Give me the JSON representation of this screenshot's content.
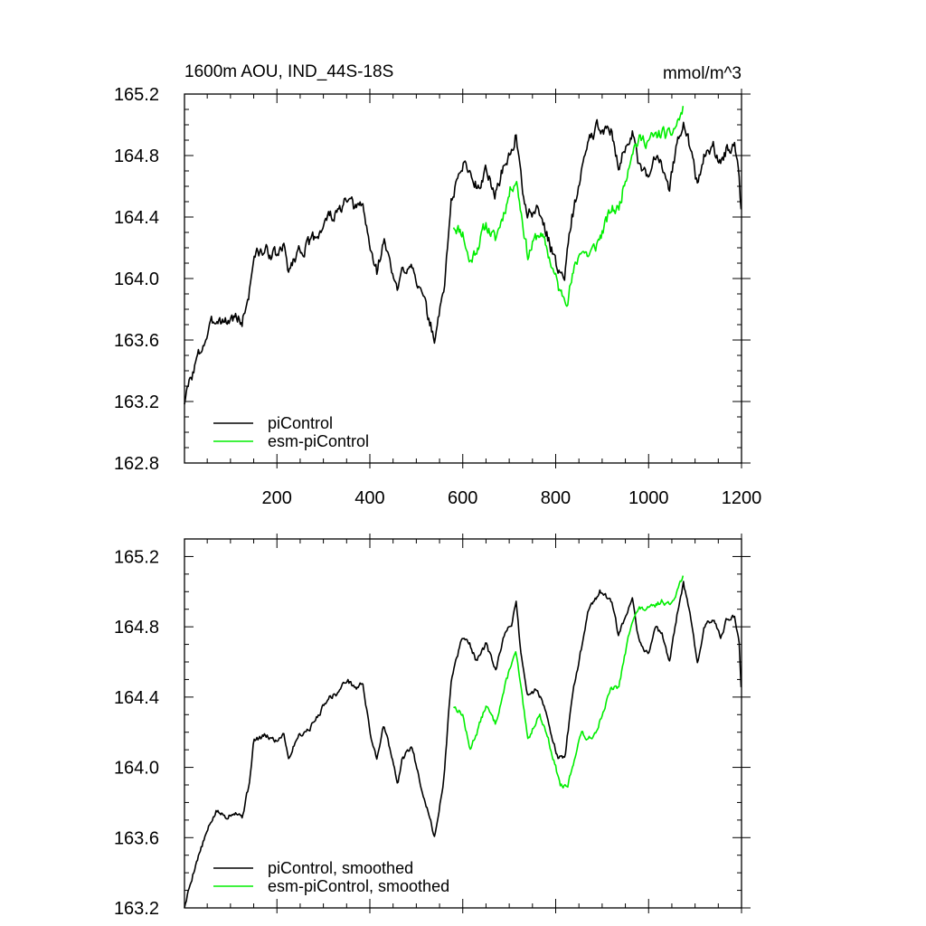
{
  "figure": {
    "title_left": "1600m AOU, IND_44S-18S",
    "title_right": "mmol/m^3"
  },
  "colors": {
    "piControl": "#000000",
    "esm": "#00ee00",
    "axis": "#000000"
  },
  "chart_data": [
    {
      "type": "line",
      "title": "1600m AOU, IND_44S-18S",
      "units": "mmol/m^3",
      "xlim": [
        1,
        1200
      ],
      "ylim": [
        162.8,
        165.2
      ],
      "x_ticks": [
        200,
        400,
        600,
        800,
        1000,
        1200
      ],
      "x_tick_labels": [
        "200",
        "400",
        "600",
        "800",
        "1000",
        "1200"
      ],
      "y_ticks": [
        162.8,
        163.2,
        163.6,
        164.0,
        164.4,
        164.8,
        165.2
      ],
      "y_tick_labels": [
        "162.8",
        "163.2",
        "163.6",
        "164.0",
        "164.4",
        "164.8",
        "165.2"
      ],
      "legend_position": "bottom-left",
      "series": [
        {
          "name": "piControl",
          "color": "#000000",
          "noise": 0.07,
          "seed": 3,
          "knots": [
            [
              1,
              163.2
            ],
            [
              10,
              163.3
            ],
            [
              25,
              163.45
            ],
            [
              45,
              163.6
            ],
            [
              60,
              163.7
            ],
            [
              70,
              163.75
            ],
            [
              90,
              163.72
            ],
            [
              110,
              163.75
            ],
            [
              125,
              163.72
            ],
            [
              140,
              163.9
            ],
            [
              150,
              164.15
            ],
            [
              175,
              164.18
            ],
            [
              200,
              164.15
            ],
            [
              215,
              164.2
            ],
            [
              225,
              164.05
            ],
            [
              245,
              164.18
            ],
            [
              270,
              164.22
            ],
            [
              290,
              164.3
            ],
            [
              310,
              164.4
            ],
            [
              330,
              164.42
            ],
            [
              350,
              164.5
            ],
            [
              370,
              164.45
            ],
            [
              385,
              164.48
            ],
            [
              400,
              164.2
            ],
            [
              415,
              164.05
            ],
            [
              430,
              164.25
            ],
            [
              445,
              164.08
            ],
            [
              460,
              163.9
            ],
            [
              470,
              164.05
            ],
            [
              490,
              164.12
            ],
            [
              510,
              163.9
            ],
            [
              530,
              163.7
            ],
            [
              540,
              163.6
            ],
            [
              560,
              163.95
            ],
            [
              575,
              164.5
            ],
            [
              585,
              164.6
            ],
            [
              600,
              164.75
            ],
            [
              615,
              164.7
            ],
            [
              630,
              164.6
            ],
            [
              650,
              164.7
            ],
            [
              670,
              164.55
            ],
            [
              690,
              164.75
            ],
            [
              705,
              164.82
            ],
            [
              715,
              164.95
            ],
            [
              725,
              164.65
            ],
            [
              740,
              164.4
            ],
            [
              760,
              164.45
            ],
            [
              775,
              164.35
            ],
            [
              790,
              164.2
            ],
            [
              805,
              164.05
            ],
            [
              820,
              164.05
            ],
            [
              835,
              164.4
            ],
            [
              850,
              164.6
            ],
            [
              870,
              164.9
            ],
            [
              895,
              165.0
            ],
            [
              920,
              164.95
            ],
            [
              935,
              164.75
            ],
            [
              950,
              164.85
            ],
            [
              965,
              164.95
            ],
            [
              980,
              164.7
            ],
            [
              1000,
              164.65
            ],
            [
              1015,
              164.8
            ],
            [
              1030,
              164.75
            ],
            [
              1045,
              164.6
            ],
            [
              1060,
              164.85
            ],
            [
              1075,
              165.05
            ],
            [
              1090,
              164.85
            ],
            [
              1105,
              164.6
            ],
            [
              1120,
              164.8
            ],
            [
              1140,
              164.85
            ],
            [
              1155,
              164.75
            ],
            [
              1170,
              164.85
            ],
            [
              1185,
              164.85
            ],
            [
              1195,
              164.7
            ],
            [
              1200,
              164.4
            ]
          ]
        },
        {
          "name": "esm-piControl",
          "color": "#00ee00",
          "noise": 0.07,
          "seed": 11,
          "knots": [
            [
              580,
              164.35
            ],
            [
              600,
              164.3
            ],
            [
              615,
              164.1
            ],
            [
              630,
              164.2
            ],
            [
              650,
              164.35
            ],
            [
              670,
              164.25
            ],
            [
              690,
              164.45
            ],
            [
              705,
              164.6
            ],
            [
              715,
              164.65
            ],
            [
              725,
              164.45
            ],
            [
              740,
              164.15
            ],
            [
              755,
              164.25
            ],
            [
              765,
              164.3
            ],
            [
              780,
              164.2
            ],
            [
              795,
              164.05
            ],
            [
              810,
              163.9
            ],
            [
              825,
              163.88
            ],
            [
              840,
              164.05
            ],
            [
              855,
              164.2
            ],
            [
              870,
              164.15
            ],
            [
              885,
              164.2
            ],
            [
              900,
              164.3
            ],
            [
              920,
              164.45
            ],
            [
              935,
              164.45
            ],
            [
              950,
              164.65
            ],
            [
              965,
              164.85
            ],
            [
              980,
              164.9
            ],
            [
              1000,
              164.9
            ],
            [
              1015,
              164.92
            ],
            [
              1030,
              164.95
            ],
            [
              1045,
              164.92
            ],
            [
              1060,
              165.0
            ],
            [
              1075,
              165.1
            ]
          ]
        }
      ]
    },
    {
      "type": "line",
      "title": "",
      "xlim": [
        1,
        1200
      ],
      "ylim": [
        163.2,
        165.3
      ],
      "x_ticks": [
        200,
        400,
        600,
        800,
        1000,
        1200
      ],
      "x_tick_labels": [],
      "y_ticks": [
        163.2,
        163.6,
        164.0,
        164.4,
        164.8,
        165.2
      ],
      "y_tick_labels": [
        "163.2",
        "163.6",
        "164.0",
        "164.4",
        "164.8",
        "165.2"
      ],
      "legend_position": "bottom-left",
      "series": [
        {
          "name": "piControl, smoothed",
          "color": "#000000",
          "noise": 0.025,
          "seed": 5,
          "knots": [
            [
              1,
              163.2
            ],
            [
              10,
              163.3
            ],
            [
              25,
              163.45
            ],
            [
              45,
              163.6
            ],
            [
              60,
              163.7
            ],
            [
              70,
              163.75
            ],
            [
              90,
              163.72
            ],
            [
              110,
              163.75
            ],
            [
              125,
              163.72
            ],
            [
              140,
              163.9
            ],
            [
              150,
              164.15
            ],
            [
              175,
              164.18
            ],
            [
              200,
              164.15
            ],
            [
              215,
              164.2
            ],
            [
              225,
              164.05
            ],
            [
              245,
              164.18
            ],
            [
              270,
              164.22
            ],
            [
              290,
              164.3
            ],
            [
              310,
              164.4
            ],
            [
              330,
              164.42
            ],
            [
              350,
              164.5
            ],
            [
              370,
              164.45
            ],
            [
              385,
              164.48
            ],
            [
              400,
              164.2
            ],
            [
              415,
              164.05
            ],
            [
              430,
              164.25
            ],
            [
              445,
              164.08
            ],
            [
              460,
              163.9
            ],
            [
              470,
              164.05
            ],
            [
              490,
              164.12
            ],
            [
              510,
              163.9
            ],
            [
              530,
              163.7
            ],
            [
              540,
              163.6
            ],
            [
              560,
              163.95
            ],
            [
              575,
              164.5
            ],
            [
              585,
              164.6
            ],
            [
              600,
              164.75
            ],
            [
              615,
              164.7
            ],
            [
              630,
              164.6
            ],
            [
              650,
              164.7
            ],
            [
              670,
              164.55
            ],
            [
              690,
              164.75
            ],
            [
              705,
              164.82
            ],
            [
              715,
              164.95
            ],
            [
              725,
              164.65
            ],
            [
              740,
              164.4
            ],
            [
              760,
              164.45
            ],
            [
              775,
              164.35
            ],
            [
              790,
              164.2
            ],
            [
              805,
              164.05
            ],
            [
              820,
              164.05
            ],
            [
              835,
              164.4
            ],
            [
              850,
              164.6
            ],
            [
              870,
              164.9
            ],
            [
              895,
              165.0
            ],
            [
              920,
              164.95
            ],
            [
              935,
              164.75
            ],
            [
              950,
              164.85
            ],
            [
              965,
              164.95
            ],
            [
              980,
              164.7
            ],
            [
              1000,
              164.65
            ],
            [
              1015,
              164.8
            ],
            [
              1030,
              164.75
            ],
            [
              1045,
              164.6
            ],
            [
              1060,
              164.85
            ],
            [
              1075,
              165.05
            ],
            [
              1090,
              164.85
            ],
            [
              1105,
              164.6
            ],
            [
              1120,
              164.8
            ],
            [
              1140,
              164.85
            ],
            [
              1155,
              164.75
            ],
            [
              1170,
              164.85
            ],
            [
              1185,
              164.85
            ],
            [
              1195,
              164.7
            ],
            [
              1200,
              164.4
            ]
          ]
        },
        {
          "name": "esm-piControl, smoothed",
          "color": "#00ee00",
          "noise": 0.025,
          "seed": 13,
          "knots": [
            [
              580,
              164.35
            ],
            [
              600,
              164.3
            ],
            [
              615,
              164.1
            ],
            [
              630,
              164.2
            ],
            [
              650,
              164.35
            ],
            [
              670,
              164.25
            ],
            [
              690,
              164.45
            ],
            [
              705,
              164.6
            ],
            [
              715,
              164.65
            ],
            [
              725,
              164.45
            ],
            [
              740,
              164.15
            ],
            [
              755,
              164.25
            ],
            [
              765,
              164.3
            ],
            [
              780,
              164.2
            ],
            [
              795,
              164.05
            ],
            [
              810,
              163.9
            ],
            [
              825,
              163.88
            ],
            [
              840,
              164.05
            ],
            [
              855,
              164.2
            ],
            [
              870,
              164.15
            ],
            [
              885,
              164.2
            ],
            [
              900,
              164.3
            ],
            [
              920,
              164.45
            ],
            [
              935,
              164.45
            ],
            [
              950,
              164.65
            ],
            [
              965,
              164.85
            ],
            [
              980,
              164.9
            ],
            [
              1000,
              164.9
            ],
            [
              1015,
              164.92
            ],
            [
              1030,
              164.95
            ],
            [
              1045,
              164.92
            ],
            [
              1060,
              165.0
            ],
            [
              1075,
              165.1
            ]
          ]
        }
      ]
    }
  ]
}
